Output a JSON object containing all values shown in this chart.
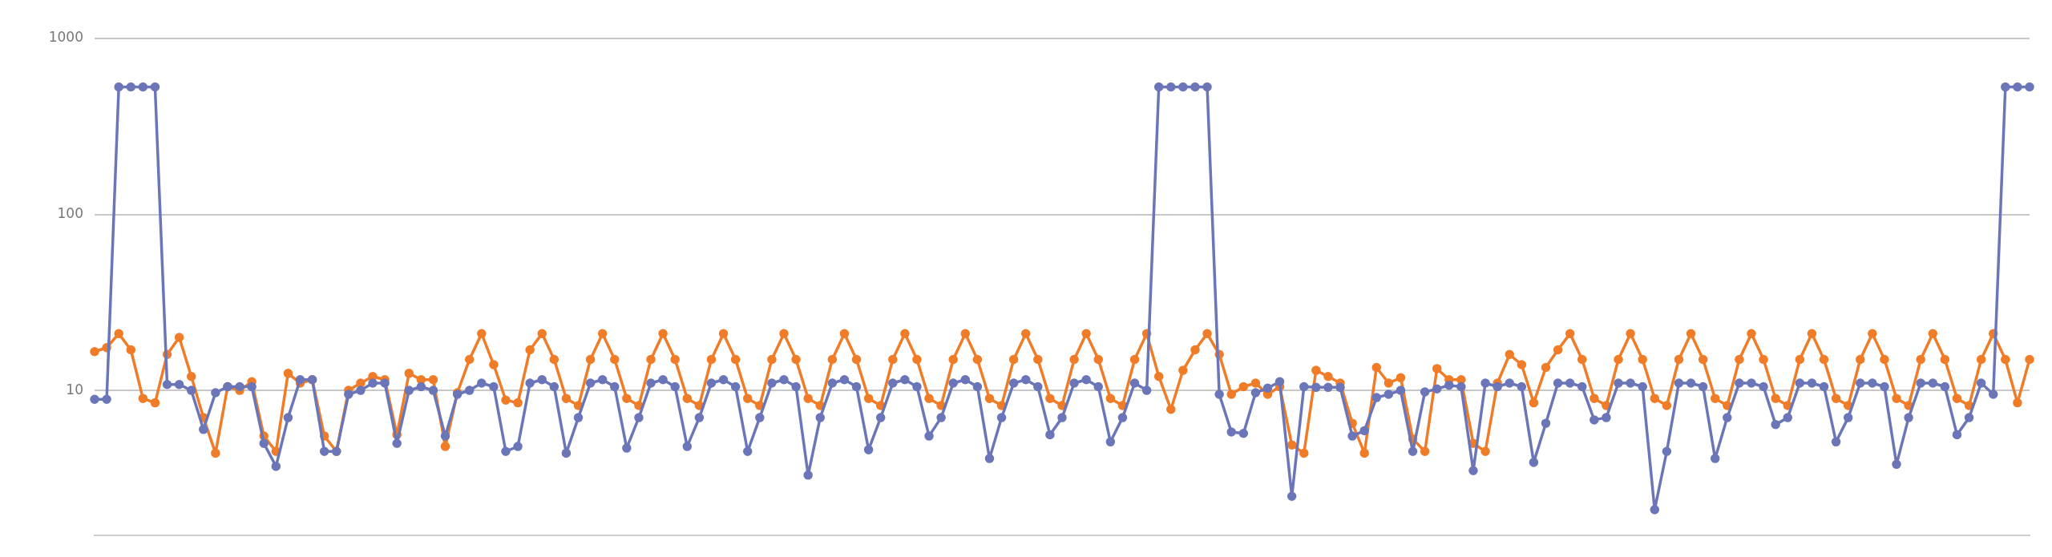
{
  "chart_data": {
    "type": "line",
    "log": "y",
    "grid": "y",
    "tick_labels": "y",
    "marker": "circle",
    "line_style": "solid",
    "ylim": [
      1.5,
      1000
    ],
    "yticks": [
      10,
      100,
      1000
    ],
    "categories": [
      null,
      null,
      null,
      null,
      null,
      null,
      null,
      null,
      null,
      null,
      null,
      null,
      null,
      null,
      null,
      null,
      null,
      null,
      null,
      null,
      null,
      null,
      null,
      null,
      null,
      null,
      null,
      null,
      null,
      null,
      null,
      null,
      null,
      null,
      null,
      null,
      null,
      null,
      null,
      null,
      null,
      null,
      null,
      null,
      null,
      null,
      null,
      null,
      null,
      null,
      null,
      null,
      null,
      null,
      null,
      null,
      null,
      null,
      null,
      null,
      null,
      null,
      null,
      null,
      null,
      null,
      null,
      null,
      null,
      null,
      null,
      null,
      null,
      null,
      null,
      null,
      null,
      null,
      null,
      null,
      null,
      null,
      null,
      null,
      null,
      null,
      null,
      null,
      null,
      null,
      null,
      null,
      null,
      null,
      null,
      null,
      null,
      null,
      null,
      null,
      null,
      null,
      null,
      null,
      null,
      null,
      null,
      null,
      null,
      null,
      null,
      null,
      null,
      null,
      null,
      null,
      null,
      null,
      null,
      null,
      null,
      null,
      null,
      null,
      null,
      null,
      null,
      null,
      null,
      null,
      null,
      null,
      null,
      null,
      null,
      null,
      null,
      null,
      null,
      null,
      null,
      null,
      null,
      null,
      null,
      null,
      null,
      null,
      null,
      null,
      null,
      null,
      null,
      null,
      null,
      null,
      null,
      null,
      null,
      null,
      null
    ],
    "series": [
      {
        "color": "#6b76b8",
        "values": [
          8.9,
          8.9,
          530,
          530,
          530,
          530,
          10.8,
          10.8,
          10,
          6,
          9.7,
          10.5,
          10.5,
          10.5,
          5,
          3.7,
          7,
          11.5,
          11.5,
          4.5,
          4.5,
          9.5,
          10,
          11,
          11,
          5,
          10,
          10.5,
          10,
          5.5,
          9.5,
          10,
          11,
          10.5,
          4.5,
          4.8,
          11,
          11.5,
          10.5,
          4.4,
          7,
          11,
          11.5,
          10.5,
          4.7,
          7,
          11,
          11.5,
          10.5,
          4.8,
          7,
          11,
          11.5,
          10.5,
          4.5,
          7,
          11,
          11.5,
          10.5,
          3.3,
          7,
          11,
          11.5,
          10.5,
          4.6,
          7,
          11,
          11.5,
          10.5,
          5.5,
          7,
          11,
          11.5,
          10.5,
          4.1,
          7,
          11,
          11.5,
          10.5,
          5.6,
          7,
          11,
          11.5,
          10.5,
          5.1,
          7,
          11,
          10,
          530,
          530,
          530,
          530,
          530,
          9.5,
          5.8,
          5.7,
          9.7,
          10.3,
          11.2,
          2.5,
          10.5,
          10.4,
          10.4,
          10.4,
          5.5,
          5.9,
          9.1,
          9.5,
          10,
          4.5,
          9.8,
          10.2,
          10.7,
          10.5,
          3.5,
          11,
          10.5,
          11,
          10.5,
          3.9,
          6.5,
          11,
          11,
          10.5,
          6.8,
          7,
          11,
          11,
          10.5,
          2.1,
          4.5,
          11,
          11,
          10.5,
          4.1,
          7,
          11,
          11,
          10.5,
          6.4,
          7,
          11,
          11,
          10.5,
          5.1,
          7,
          11,
          11,
          10.5,
          3.8,
          7,
          11,
          11,
          10.5,
          5.6,
          7,
          11,
          9.5,
          530,
          530,
          530
        ]
      },
      {
        "color": "#f07c28",
        "values": [
          16.6,
          17.5,
          21,
          17,
          9,
          8.5,
          16,
          20,
          12,
          7,
          4.4,
          10.5,
          10,
          11.2,
          5.5,
          4.5,
          12.5,
          11,
          11.5,
          5.5,
          4.5,
          10,
          11,
          12,
          11.5,
          5.6,
          12.5,
          11.5,
          11.5,
          4.8,
          9.7,
          15,
          21,
          14,
          8.8,
          8.5,
          17,
          21,
          15,
          9,
          8.2,
          15,
          21,
          15,
          9,
          8.2,
          15,
          21,
          15,
          9,
          8.2,
          15,
          21,
          15,
          9,
          8.2,
          15,
          21,
          15,
          9,
          8.2,
          15,
          21,
          15,
          9,
          8.2,
          15,
          21,
          15,
          9,
          8.2,
          15,
          21,
          15,
          9,
          8.2,
          15,
          21,
          15,
          9,
          8.2,
          15,
          21,
          15,
          9,
          8.2,
          15,
          21,
          12,
          7.8,
          13,
          17,
          21,
          16,
          9.5,
          10.5,
          11,
          9.5,
          10.5,
          4.9,
          4.4,
          13,
          12,
          11,
          6.5,
          4.4,
          13.5,
          11,
          11.8,
          5.3,
          4.5,
          13.3,
          11.5,
          11.5,
          5,
          4.5,
          11,
          16,
          14,
          8.5,
          13.5,
          17,
          21,
          15,
          9,
          8.2,
          15,
          21,
          15,
          9,
          8.2,
          15,
          21,
          15,
          9,
          8.2,
          15,
          21,
          15,
          9,
          8.2,
          15,
          21,
          15,
          9,
          8.2,
          15,
          21,
          15,
          9,
          8.2,
          15,
          21,
          15,
          9,
          8.2,
          15,
          21,
          15,
          8.5,
          15
        ]
      }
    ]
  }
}
